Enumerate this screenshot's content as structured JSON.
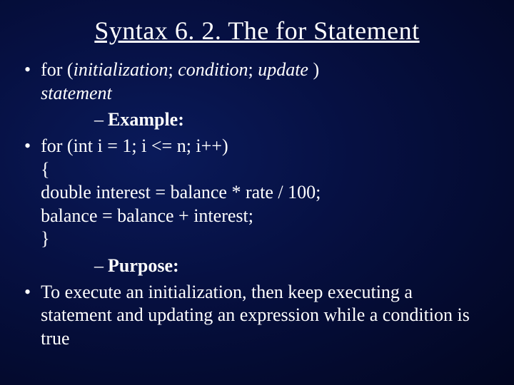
{
  "colors": {
    "background_gradient_inner": "#0a1a5a",
    "background_gradient_mid": "#061042",
    "background_gradient_outer": "#020620",
    "text": "#ffffff"
  },
  "typography": {
    "title_fontsize": 36,
    "body_fontsize": 26,
    "font_family": "Times New Roman"
  },
  "title": "Syntax 6. 2. The for Statement",
  "bullets": {
    "b1_prefix": "for (",
    "b1_init": "initialization",
    "b1_sep1": "; ",
    "b1_cond": "condition",
    "b1_sep2": "; ",
    "b1_upd": "update",
    "b1_suffix": " )",
    "b1_line2": "statement",
    "sub1_dash": "–",
    "sub1_label": "Example:",
    "b2_l1": "for (int i = 1; i <= n; i++)",
    "b2_l2": "{",
    "b2_l3": "double interest = balance * rate / 100;",
    "b2_l4": "balance = balance + interest;",
    "b2_l5": "}",
    "sub2_dash": "–",
    "sub2_label": "Purpose:",
    "b3": "To execute an initialization, then keep executing a statement and updating an expression while a condition is true"
  },
  "bullet_glyph": "•"
}
